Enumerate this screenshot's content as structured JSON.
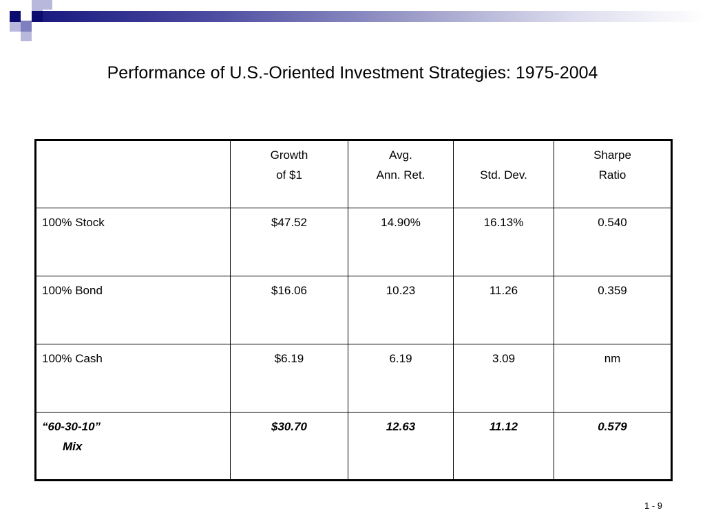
{
  "title": "Performance of U.S.-Oriented Investment Strategies: 1975-2004",
  "table": {
    "headers": [
      {
        "line1": "",
        "line2": ""
      },
      {
        "line1": "Growth",
        "line2": "of $1"
      },
      {
        "line1": "Avg.",
        "line2": "Ann. Ret."
      },
      {
        "line1": "",
        "line2": "Std. Dev."
      },
      {
        "line1": "Sharpe",
        "line2": "Ratio"
      }
    ],
    "rows": [
      {
        "label": "100% Stock",
        "growth": "$47.52",
        "avg_ret": "14.90%",
        "std_dev": "16.13%",
        "sharpe": "0.540"
      },
      {
        "label": "100% Bond",
        "growth": "$16.06",
        "avg_ret": "10.23",
        "std_dev": "11.26",
        "sharpe": "0.359"
      },
      {
        "label": "100% Cash",
        "growth": "$6.19",
        "avg_ret": "6.19",
        "std_dev": "3.09",
        "sharpe": "nm"
      }
    ],
    "mix_row": {
      "label_line1": "“60-30-10”",
      "label_line2": "Mix",
      "growth": "$30.70",
      "avg_ret": "12.63",
      "std_dev": "11.12",
      "sharpe": "0.579"
    }
  },
  "page_number": "1 - 9",
  "colors": {
    "navy": "#0b0b70",
    "accent_mid": "#7f7fc0",
    "accent_light": "#b8b8dc"
  }
}
